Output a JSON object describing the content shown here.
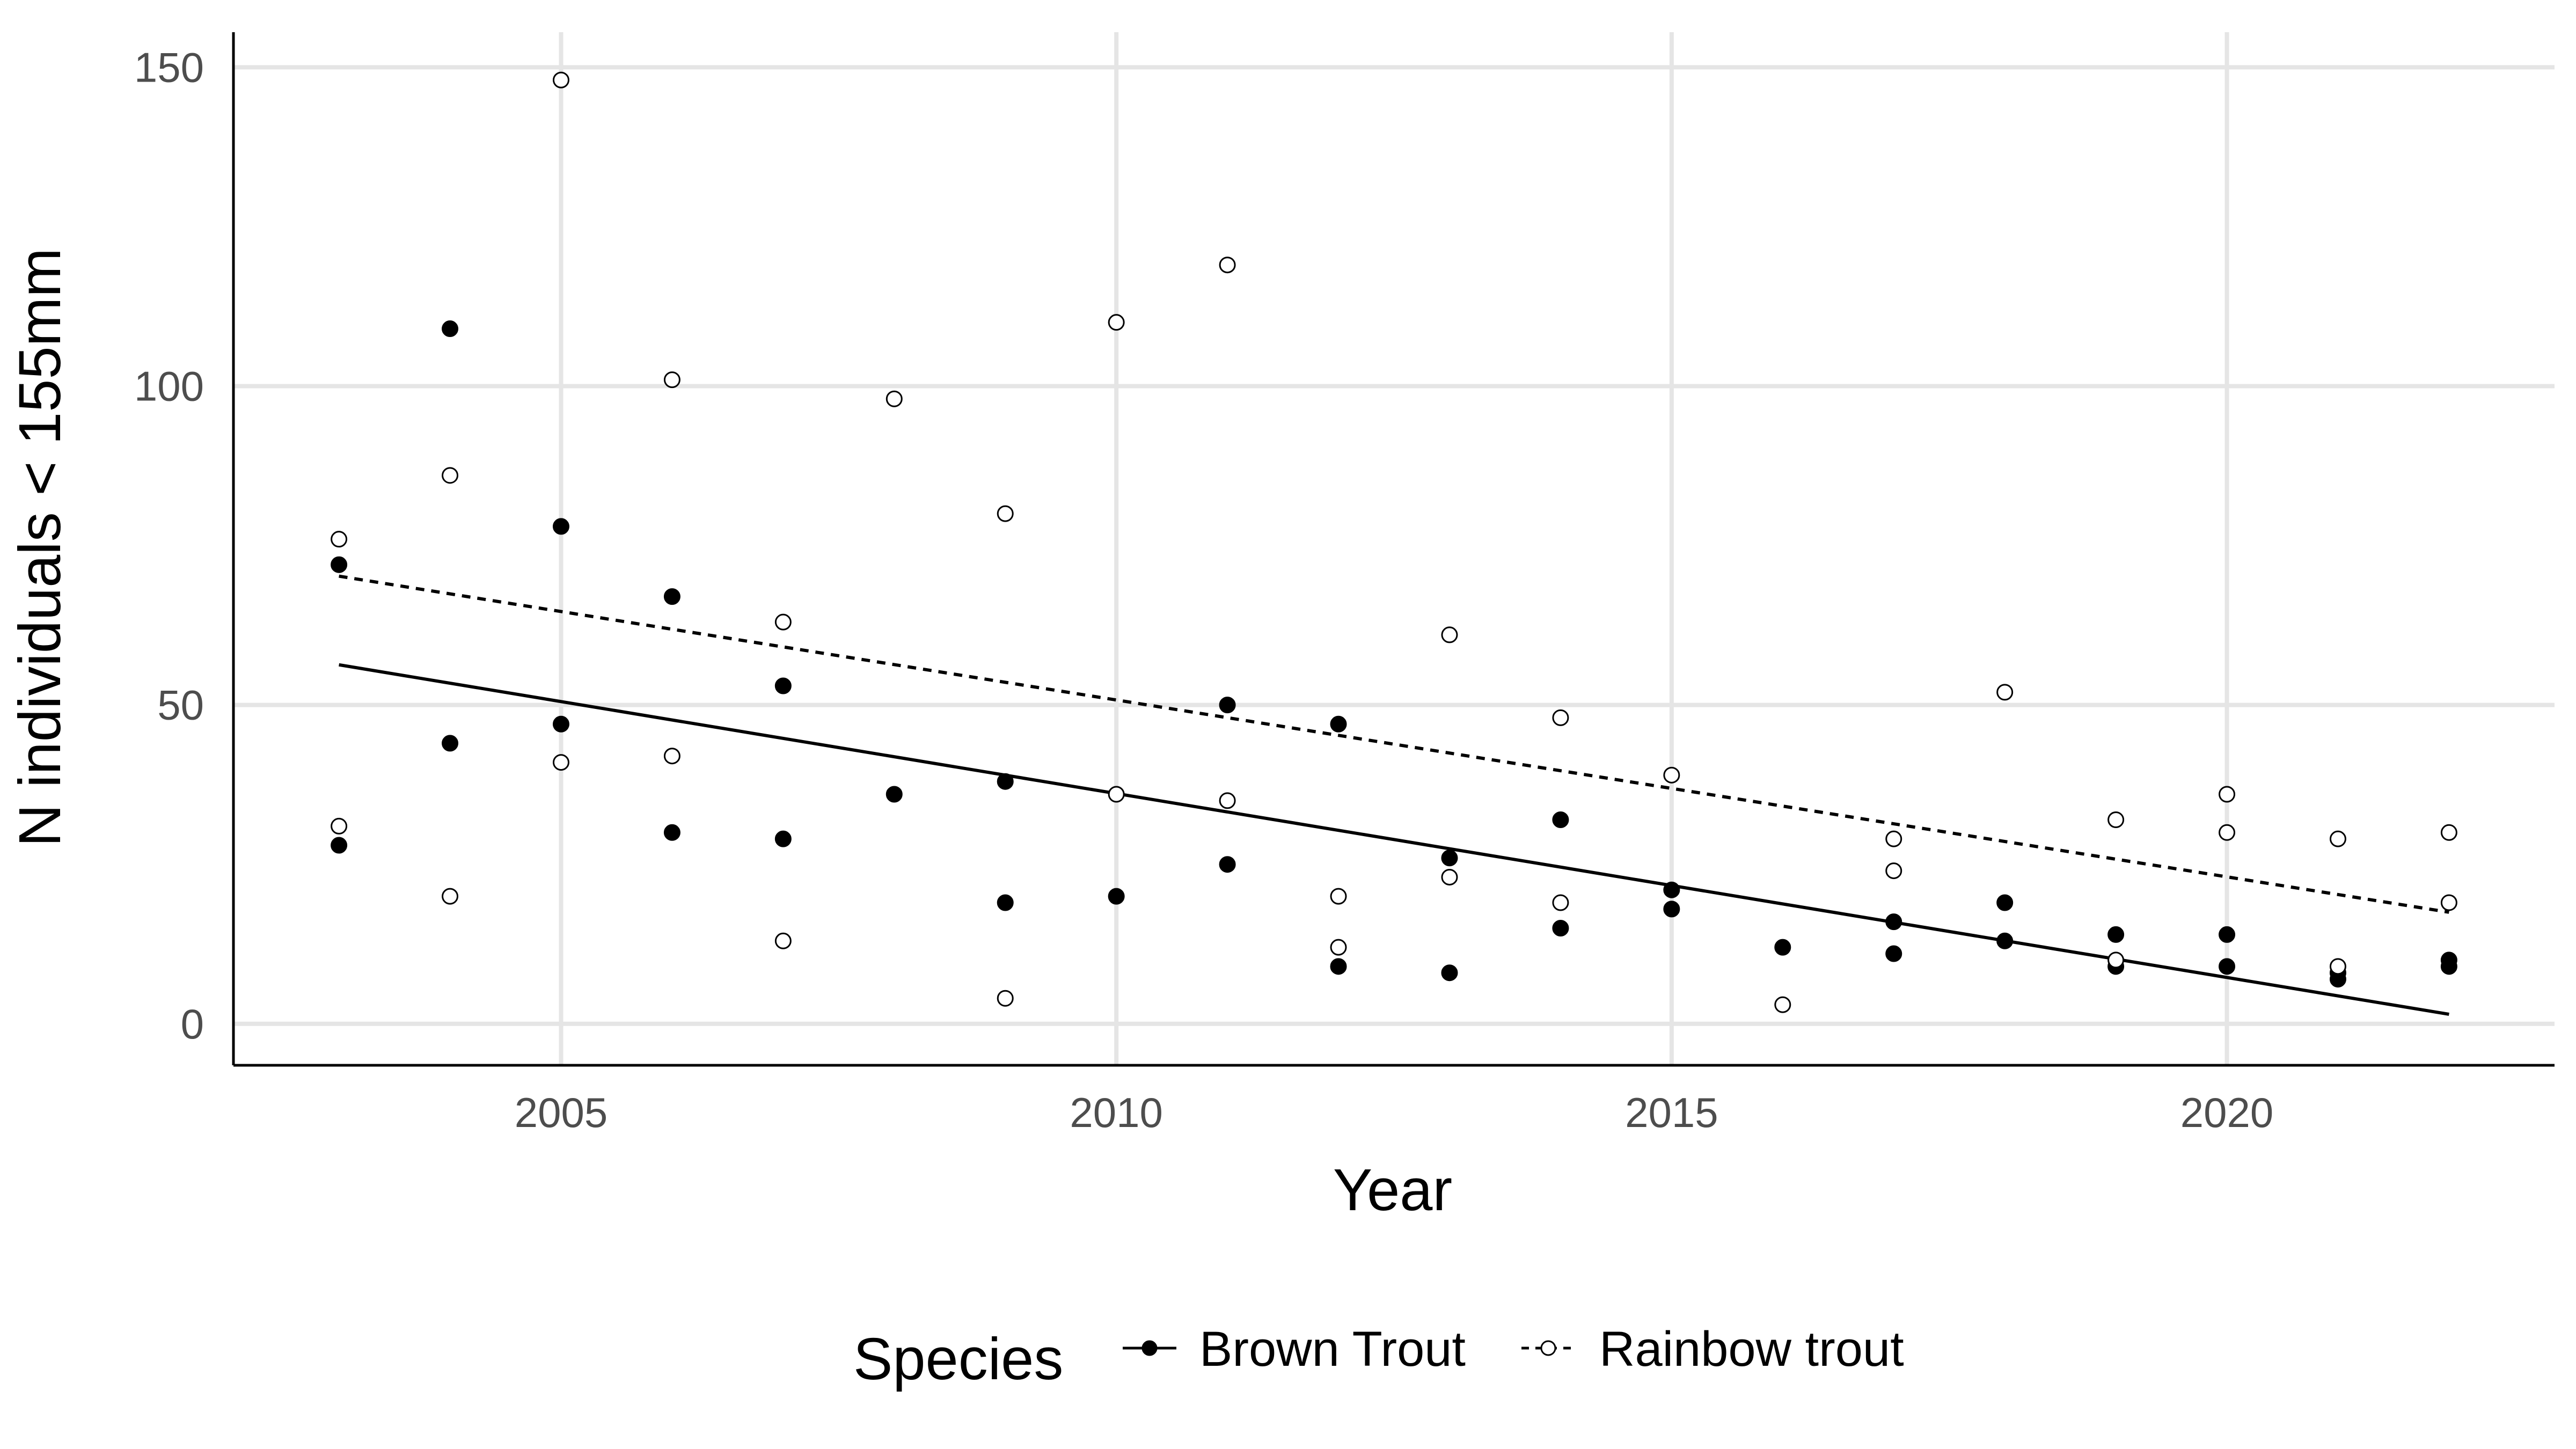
{
  "chart_data": {
    "type": "scatter",
    "title": "",
    "xlabel": "Year",
    "ylabel": "N individuals < 155mm",
    "xlim": [
      2002.05,
      2022.95
    ],
    "ylim": [
      -6.5,
      155.5
    ],
    "x_ticks": [
      2005,
      2010,
      2015,
      2020
    ],
    "y_ticks": [
      0,
      50,
      100,
      150
    ],
    "grid": true,
    "legend": {
      "title": "Species",
      "position": "bottom",
      "entries": [
        "Brown Trout",
        "Rainbow trout"
      ]
    },
    "series": [
      {
        "name": "Brown Trout",
        "marker": "filled-circle",
        "line_style": "solid",
        "color": "#000000",
        "points": [
          [
            2003,
            72
          ],
          [
            2003,
            28
          ],
          [
            2004,
            109
          ],
          [
            2004,
            44
          ],
          [
            2005,
            78
          ],
          [
            2005,
            47
          ],
          [
            2006,
            67
          ],
          [
            2006,
            30
          ],
          [
            2007,
            53
          ],
          [
            2007,
            29
          ],
          [
            2008,
            36
          ],
          [
            2009,
            38
          ],
          [
            2009,
            19
          ],
          [
            2010,
            20
          ],
          [
            2011,
            50
          ],
          [
            2011,
            25
          ],
          [
            2012,
            47
          ],
          [
            2012,
            9
          ],
          [
            2013,
            26
          ],
          [
            2013,
            8
          ],
          [
            2014,
            32
          ],
          [
            2014,
            15
          ],
          [
            2015,
            21
          ],
          [
            2015,
            18
          ],
          [
            2016,
            12
          ],
          [
            2017,
            16
          ],
          [
            2017,
            11
          ],
          [
            2018,
            19
          ],
          [
            2018,
            13
          ],
          [
            2019,
            14
          ],
          [
            2019,
            9
          ],
          [
            2020,
            14
          ],
          [
            2020,
            9
          ],
          [
            2021,
            8
          ],
          [
            2021,
            7
          ],
          [
            2022,
            10
          ],
          [
            2022,
            9
          ]
        ],
        "trend": [
          [
            2003,
            56.3
          ],
          [
            2022,
            1.5
          ]
        ]
      },
      {
        "name": "Rainbow trout",
        "marker": "open-circle",
        "line_style": "dashed",
        "color": "#000000",
        "points": [
          [
            2003,
            76
          ],
          [
            2003,
            31
          ],
          [
            2004,
            86
          ],
          [
            2004,
            20
          ],
          [
            2005,
            148
          ],
          [
            2005,
            41
          ],
          [
            2006,
            101
          ],
          [
            2006,
            42
          ],
          [
            2007,
            63
          ],
          [
            2007,
            13
          ],
          [
            2008,
            98
          ],
          [
            2009,
            80
          ],
          [
            2009,
            4
          ],
          [
            2010,
            110
          ],
          [
            2010,
            36
          ],
          [
            2011,
            119
          ],
          [
            2011,
            35
          ],
          [
            2012,
            20
          ],
          [
            2012,
            12
          ],
          [
            2013,
            61
          ],
          [
            2013,
            23
          ],
          [
            2014,
            48
          ],
          [
            2014,
            19
          ],
          [
            2015,
            39
          ],
          [
            2016,
            3
          ],
          [
            2017,
            29
          ],
          [
            2017,
            24
          ],
          [
            2018,
            52
          ],
          [
            2019,
            32
          ],
          [
            2019,
            10
          ],
          [
            2020,
            36
          ],
          [
            2020,
            30
          ],
          [
            2021,
            29
          ],
          [
            2021,
            9
          ],
          [
            2022,
            30
          ],
          [
            2022,
            19
          ]
        ],
        "trend": [
          [
            2003,
            70.2
          ],
          [
            2022,
            17.5
          ]
        ]
      }
    ]
  }
}
